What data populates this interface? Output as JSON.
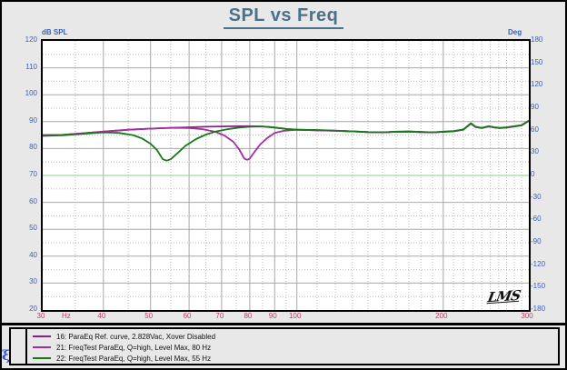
{
  "window": {
    "title": "SPL vs Freq"
  },
  "axes": {
    "left_label": "dB SPL",
    "right_label": "Deg",
    "x_unit": "Hz"
  },
  "logo": {
    "text": "LMS"
  },
  "corner_glyph": "ξ",
  "colors": {
    "title": "#4a7189",
    "y_tick_labels": "#3a5fc0",
    "x_tick_labels": "#c23a6a",
    "grid_major": "#a8a8a8",
    "grid_minor": "#bdbdbd"
  },
  "chart_data": {
    "type": "line",
    "title": "SPL vs Freq",
    "grid": true,
    "legend_position": "bottom",
    "x_axis": {
      "scale": "log",
      "min": 30,
      "max": 300,
      "unit": "Hz",
      "major_ticks": [
        {
          "v": 30,
          "label": "30"
        },
        {
          "v": 40,
          "label": "40"
        },
        {
          "v": 50,
          "label": "50"
        },
        {
          "v": 60,
          "label": "60"
        },
        {
          "v": 70,
          "label": "70"
        },
        {
          "v": 80,
          "label": "80"
        },
        {
          "v": 90,
          "label": "90"
        },
        {
          "v": 100,
          "label": "100"
        },
        {
          "v": 200,
          "label": "200"
        },
        {
          "v": 300,
          "label": "300"
        }
      ],
      "minor_ticks": [
        35,
        45,
        55,
        65,
        75,
        85,
        95,
        110,
        120,
        130,
        140,
        150,
        160,
        170,
        180,
        190,
        210,
        220,
        230,
        240,
        250,
        260,
        270,
        280,
        290
      ]
    },
    "y_left": {
      "label": "dB SPL",
      "min": 20,
      "max": 120,
      "tick_step": 10,
      "minor_step": 5,
      "ticks": [
        {
          "v": 120,
          "label": "120"
        },
        {
          "v": 110,
          "label": "110"
        },
        {
          "v": 100,
          "label": "100"
        },
        {
          "v": 90,
          "label": "90"
        },
        {
          "v": 80,
          "label": "80"
        },
        {
          "v": 70,
          "label": "70"
        },
        {
          "v": 60,
          "label": "60"
        },
        {
          "v": 50,
          "label": "50"
        },
        {
          "v": 40,
          "label": "40"
        },
        {
          "v": 30,
          "label": "30"
        },
        {
          "v": 20,
          "label": "20"
        }
      ]
    },
    "y_right": {
      "label": "Deg",
      "min": -180,
      "max": 180,
      "tick_step": 30,
      "ticks": [
        {
          "v": 180,
          "label": "180"
        },
        {
          "v": 150,
          "label": "150"
        },
        {
          "v": 120,
          "label": "120"
        },
        {
          "v": 90,
          "label": "90"
        },
        {
          "v": 60,
          "label": "60"
        },
        {
          "v": 30,
          "label": "30"
        },
        {
          "v": 0,
          "label": "0"
        },
        {
          "v": -30,
          "label": "-30"
        },
        {
          "v": -60,
          "label": "-60"
        },
        {
          "v": -90,
          "label": "-90"
        },
        {
          "v": -120,
          "label": "-120"
        },
        {
          "v": -150,
          "label": "-150"
        },
        {
          "v": -180,
          "label": "-180"
        }
      ]
    },
    "series": [
      {
        "name": "16: ParaEq Ref. curve, 2.828Vac, Xover Disabled",
        "color": "#8a1f8a",
        "axis": "left",
        "width": 1.8,
        "z": 1,
        "dname": "curve-16-ref",
        "points": [
          [
            30,
            85.0
          ],
          [
            33,
            85.1
          ],
          [
            36,
            85.6
          ],
          [
            40,
            86.3
          ],
          [
            45,
            87.0
          ],
          [
            50,
            87.4
          ],
          [
            55,
            87.7
          ],
          [
            60,
            87.9
          ],
          [
            65,
            88.1
          ],
          [
            70,
            88.2
          ],
          [
            75,
            88.3
          ],
          [
            80,
            88.3
          ],
          [
            85,
            88.2
          ],
          [
            88,
            88.0
          ],
          [
            92,
            87.6
          ],
          [
            96,
            87.2
          ],
          [
            100,
            87.0
          ],
          [
            110,
            86.8
          ],
          [
            120,
            86.6
          ],
          [
            130,
            86.4
          ],
          [
            140,
            86.1
          ],
          [
            150,
            86.0
          ],
          [
            160,
            86.2
          ],
          [
            170,
            86.3
          ],
          [
            180,
            86.1
          ],
          [
            190,
            86.0
          ],
          [
            200,
            86.2
          ],
          [
            210,
            86.4
          ],
          [
            220,
            87.0
          ],
          [
            228,
            89.3
          ],
          [
            233,
            88.0
          ],
          [
            240,
            87.6
          ],
          [
            248,
            88.2
          ],
          [
            255,
            87.8
          ],
          [
            262,
            87.6
          ],
          [
            270,
            87.8
          ],
          [
            280,
            88.2
          ],
          [
            290,
            88.6
          ],
          [
            300,
            90.3
          ]
        ]
      },
      {
        "name": "21: FreqTest ParaEq, Q=high, Level Max, 80 Hz",
        "color": "#a32ea3",
        "axis": "left",
        "width": 1.8,
        "z": 2,
        "dname": "curve-21-notch-80hz",
        "points": [
          [
            30,
            85.0
          ],
          [
            33,
            85.1
          ],
          [
            36,
            85.6
          ],
          [
            40,
            86.3
          ],
          [
            45,
            87.0
          ],
          [
            50,
            87.4
          ],
          [
            55,
            87.7
          ],
          [
            60,
            87.6
          ],
          [
            64,
            87.2
          ],
          [
            68,
            86.2
          ],
          [
            71,
            84.8
          ],
          [
            74,
            82.5
          ],
          [
            76,
            79.8
          ],
          [
            78,
            76.2
          ],
          [
            79,
            75.8
          ],
          [
            80,
            76.3
          ],
          [
            82,
            79.0
          ],
          [
            84,
            81.5
          ],
          [
            87,
            84.0
          ],
          [
            90,
            85.8
          ],
          [
            94,
            86.6
          ],
          [
            100,
            87.0
          ],
          [
            110,
            86.8
          ],
          [
            120,
            86.6
          ],
          [
            130,
            86.4
          ],
          [
            140,
            86.1
          ],
          [
            150,
            86.0
          ],
          [
            160,
            86.2
          ],
          [
            170,
            86.3
          ],
          [
            180,
            86.1
          ],
          [
            190,
            86.0
          ],
          [
            200,
            86.2
          ],
          [
            210,
            86.4
          ],
          [
            220,
            87.0
          ],
          [
            228,
            89.3
          ],
          [
            233,
            88.0
          ],
          [
            240,
            87.6
          ],
          [
            248,
            88.2
          ],
          [
            255,
            87.8
          ],
          [
            262,
            87.6
          ],
          [
            270,
            87.8
          ],
          [
            280,
            88.2
          ],
          [
            290,
            88.6
          ],
          [
            300,
            90.3
          ]
        ]
      },
      {
        "name": "22: FreqTest ParaEq, Q=high, Level Max, 55 Hz",
        "color": "#187818",
        "axis": "left",
        "width": 1.8,
        "z": 3,
        "dname": "curve-22-notch-55hz",
        "points": [
          [
            30,
            84.7
          ],
          [
            33,
            84.9
          ],
          [
            36,
            85.4
          ],
          [
            40,
            86.0
          ],
          [
            43,
            85.8
          ],
          [
            46,
            85.0
          ],
          [
            48,
            83.8
          ],
          [
            50,
            81.8
          ],
          [
            51.5,
            79.5
          ],
          [
            53,
            76.0
          ],
          [
            54,
            75.5
          ],
          [
            55,
            76.0
          ],
          [
            57,
            78.5
          ],
          [
            59,
            81.0
          ],
          [
            62,
            83.5
          ],
          [
            65,
            85.2
          ],
          [
            68,
            86.3
          ],
          [
            72,
            87.2
          ],
          [
            76,
            87.8
          ],
          [
            80,
            88.1
          ],
          [
            85,
            88.2
          ],
          [
            90,
            87.8
          ],
          [
            95,
            87.3
          ],
          [
            100,
            87.0
          ],
          [
            110,
            86.9
          ],
          [
            120,
            86.7
          ],
          [
            130,
            86.4
          ],
          [
            140,
            86.1
          ],
          [
            150,
            86.0
          ],
          [
            160,
            86.3
          ],
          [
            170,
            86.4
          ],
          [
            180,
            86.2
          ],
          [
            190,
            86.0
          ],
          [
            200,
            86.3
          ],
          [
            210,
            86.5
          ],
          [
            220,
            87.1
          ],
          [
            228,
            89.4
          ],
          [
            233,
            88.1
          ],
          [
            240,
            87.7
          ],
          [
            248,
            88.3
          ],
          [
            255,
            87.9
          ],
          [
            262,
            87.7
          ],
          [
            270,
            87.9
          ],
          [
            280,
            88.3
          ],
          [
            290,
            88.7
          ],
          [
            300,
            90.4
          ]
        ]
      },
      {
        "color": "#9ede9e",
        "axis": "right",
        "width": 1.2,
        "z": 0,
        "dname": "phase-line-0deg",
        "points": [
          [
            30,
            0
          ],
          [
            300,
            0
          ]
        ]
      }
    ]
  }
}
